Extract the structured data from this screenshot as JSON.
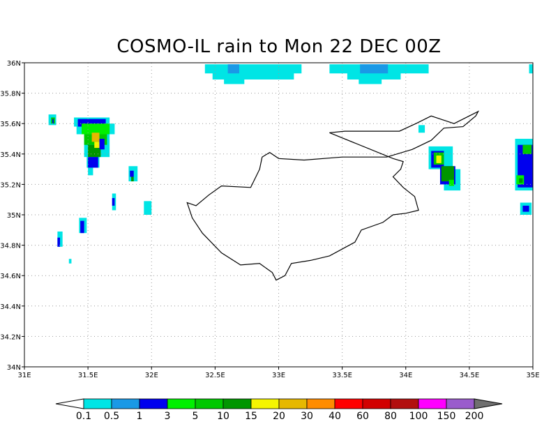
{
  "title": "COSMO-IL rain to Mon 22 DEC 00Z",
  "map": {
    "lon_range": [
      31,
      35
    ],
    "lat_range": [
      34,
      36
    ],
    "lon_ticks": [
      "31E",
      "31.5E",
      "32E",
      "32.5E",
      "33E",
      "33.5E",
      "34E",
      "34.5E",
      "35E"
    ],
    "lat_ticks": [
      "34N",
      "34.2N",
      "34.4N",
      "34.6N",
      "34.8N",
      "35N",
      "35.2N",
      "35.4N",
      "35.6N",
      "35.8N",
      "36N"
    ],
    "grid": "dotted"
  },
  "colorbar": {
    "labels": [
      "0.1",
      "0.5",
      "1",
      "3",
      "5",
      "10",
      "15",
      "20",
      "30",
      "40",
      "60",
      "80",
      "100",
      "150",
      "200"
    ],
    "colors": [
      "#00e5e5",
      "#1a99e6",
      "#0000ee",
      "#00f000",
      "#00c800",
      "#009600",
      "#f5f500",
      "#e6b800",
      "#ff8c00",
      "#ff0000",
      "#d20000",
      "#b20f0f",
      "#ff00ff",
      "#9a5ccc"
    ],
    "under_color": "#ffffff",
    "over_color": "#707070"
  },
  "coastline_cyprus": [
    [
      33.4,
      35.54
    ],
    [
      33.52,
      35.55
    ],
    [
      33.95,
      35.55
    ],
    [
      34.08,
      35.6
    ],
    [
      34.2,
      35.65
    ],
    [
      34.38,
      35.6
    ],
    [
      34.57,
      35.68
    ],
    [
      34.55,
      35.65
    ],
    [
      34.45,
      35.58
    ],
    [
      34.3,
      35.57
    ],
    [
      34.2,
      35.49
    ],
    [
      34.05,
      35.43
    ],
    [
      33.85,
      35.38
    ],
    [
      33.5,
      35.38
    ],
    [
      33.2,
      35.36
    ],
    [
      33.0,
      35.37
    ],
    [
      32.93,
      35.41
    ],
    [
      32.87,
      35.38
    ],
    [
      32.85,
      35.3
    ],
    [
      32.78,
      35.18
    ],
    [
      32.55,
      35.19
    ],
    [
      32.45,
      35.13
    ],
    [
      32.35,
      35.06
    ],
    [
      32.28,
      35.08
    ],
    [
      32.32,
      34.98
    ],
    [
      32.4,
      34.88
    ],
    [
      32.55,
      34.75
    ],
    [
      32.7,
      34.67
    ],
    [
      32.85,
      34.68
    ],
    [
      32.95,
      34.62
    ],
    [
      32.98,
      34.57
    ],
    [
      33.05,
      34.6
    ],
    [
      33.1,
      34.68
    ],
    [
      33.25,
      34.7
    ],
    [
      33.4,
      34.73
    ],
    [
      33.6,
      34.82
    ],
    [
      33.65,
      34.9
    ],
    [
      33.82,
      34.95
    ],
    [
      33.9,
      35.0
    ],
    [
      34.0,
      35.01
    ],
    [
      34.1,
      35.03
    ],
    [
      34.07,
      35.12
    ],
    [
      33.98,
      35.18
    ],
    [
      33.9,
      35.25
    ],
    [
      33.96,
      35.3
    ],
    [
      33.98,
      35.35
    ],
    [
      33.9,
      35.37
    ]
  ],
  "rain_cells": [
    {
      "lon": 32.42,
      "lat": 35.93,
      "w": 0.76,
      "h": 0.06,
      "c": "#00e5e5"
    },
    {
      "lon": 32.48,
      "lat": 35.89,
      "w": 0.64,
      "h": 0.05,
      "c": "#00e5e5"
    },
    {
      "lon": 32.57,
      "lat": 35.86,
      "w": 0.16,
      "h": 0.04,
      "c": "#00e5e5"
    },
    {
      "lon": 32.6,
      "lat": 35.93,
      "w": 0.09,
      "h": 0.06,
      "c": "#1a99e6"
    },
    {
      "lon": 33.4,
      "lat": 35.93,
      "w": 0.78,
      "h": 0.06,
      "c": "#00e5e5"
    },
    {
      "lon": 33.54,
      "lat": 35.89,
      "w": 0.42,
      "h": 0.05,
      "c": "#00e5e5"
    },
    {
      "lon": 33.63,
      "lat": 35.86,
      "w": 0.18,
      "h": 0.04,
      "c": "#00e5e5"
    },
    {
      "lon": 33.64,
      "lat": 35.93,
      "w": 0.22,
      "h": 0.06,
      "c": "#1a99e6"
    },
    {
      "lon": 34.97,
      "lat": 35.93,
      "w": 0.03,
      "h": 0.06,
      "c": "#00e5e5"
    },
    {
      "lon": 31.19,
      "lat": 35.59,
      "w": 0.06,
      "h": 0.07,
      "c": "#00e5e5"
    },
    {
      "lon": 31.21,
      "lat": 35.6,
      "w": 0.03,
      "h": 0.04,
      "c": "#00c800"
    },
    {
      "lon": 31.22,
      "lat": 35.6,
      "w": 0.01,
      "h": 0.03,
      "c": "#0000ee"
    },
    {
      "lon": 31.39,
      "lat": 35.58,
      "w": 0.28,
      "h": 0.06,
      "c": "#00e5e5"
    },
    {
      "lon": 31.41,
      "lat": 35.53,
      "w": 0.3,
      "h": 0.07,
      "c": "#00e5e5"
    },
    {
      "lon": 31.47,
      "lat": 35.38,
      "w": 0.2,
      "h": 0.15,
      "c": "#00e5e5"
    },
    {
      "lon": 31.49,
      "lat": 35.31,
      "w": 0.1,
      "h": 0.08,
      "c": "#00e5e5"
    },
    {
      "lon": 31.5,
      "lat": 35.26,
      "w": 0.04,
      "h": 0.05,
      "c": "#00e5e5"
    },
    {
      "lon": 31.42,
      "lat": 35.58,
      "w": 0.22,
      "h": 0.05,
      "c": "#0000ee"
    },
    {
      "lon": 31.45,
      "lat": 35.53,
      "w": 0.22,
      "h": 0.07,
      "c": "#00f000"
    },
    {
      "lon": 31.47,
      "lat": 35.46,
      "w": 0.18,
      "h": 0.07,
      "c": "#00c800"
    },
    {
      "lon": 31.5,
      "lat": 35.38,
      "w": 0.1,
      "h": 0.08,
      "c": "#009600"
    },
    {
      "lon": 31.5,
      "lat": 35.31,
      "w": 0.08,
      "h": 0.07,
      "c": "#0000ee"
    },
    {
      "lon": 31.53,
      "lat": 35.48,
      "w": 0.06,
      "h": 0.06,
      "c": "#e6b800"
    },
    {
      "lon": 31.55,
      "lat": 35.44,
      "w": 0.04,
      "h": 0.04,
      "c": "#f5f500"
    },
    {
      "lon": 31.59,
      "lat": 35.43,
      "w": 0.04,
      "h": 0.07,
      "c": "#0000ee"
    },
    {
      "lon": 31.82,
      "lat": 35.22,
      "w": 0.07,
      "h": 0.1,
      "c": "#00e5e5"
    },
    {
      "lon": 31.83,
      "lat": 35.25,
      "w": 0.03,
      "h": 0.04,
      "c": "#0000ee"
    },
    {
      "lon": 31.84,
      "lat": 35.22,
      "w": 0.02,
      "h": 0.03,
      "c": "#009600"
    },
    {
      "lon": 31.69,
      "lat": 35.03,
      "w": 0.03,
      "h": 0.11,
      "c": "#00e5e5"
    },
    {
      "lon": 31.69,
      "lat": 35.06,
      "w": 0.02,
      "h": 0.05,
      "c": "#0000ee"
    },
    {
      "lon": 31.94,
      "lat": 35.0,
      "w": 0.06,
      "h": 0.09,
      "c": "#00e5e5"
    },
    {
      "lon": 31.43,
      "lat": 34.88,
      "w": 0.06,
      "h": 0.1,
      "c": "#00e5e5"
    },
    {
      "lon": 31.44,
      "lat": 34.88,
      "w": 0.03,
      "h": 0.08,
      "c": "#0000ee"
    },
    {
      "lon": 31.26,
      "lat": 34.79,
      "w": 0.04,
      "h": 0.1,
      "c": "#00e5e5"
    },
    {
      "lon": 31.26,
      "lat": 34.79,
      "w": 0.02,
      "h": 0.06,
      "c": "#0000ee"
    },
    {
      "lon": 31.35,
      "lat": 34.68,
      "w": 0.02,
      "h": 0.03,
      "c": "#00e5e5"
    },
    {
      "lon": 34.1,
      "lat": 35.54,
      "w": 0.05,
      "h": 0.05,
      "c": "#00e5e5"
    },
    {
      "lon": 34.18,
      "lat": 35.3,
      "w": 0.19,
      "h": 0.15,
      "c": "#00e5e5"
    },
    {
      "lon": 34.3,
      "lat": 35.16,
      "w": 0.13,
      "h": 0.14,
      "c": "#00e5e5"
    },
    {
      "lon": 34.2,
      "lat": 35.31,
      "w": 0.1,
      "h": 0.11,
      "c": "#0000ee"
    },
    {
      "lon": 34.27,
      "lat": 35.2,
      "w": 0.12,
      "h": 0.12,
      "c": "#0000ee"
    },
    {
      "lon": 34.22,
      "lat": 35.33,
      "w": 0.08,
      "h": 0.08,
      "c": "#00c800"
    },
    {
      "lon": 34.28,
      "lat": 35.22,
      "w": 0.1,
      "h": 0.1,
      "c": "#009600"
    },
    {
      "lon": 34.24,
      "lat": 35.34,
      "w": 0.04,
      "h": 0.05,
      "c": "#f5f500"
    },
    {
      "lon": 34.34,
      "lat": 35.19,
      "w": 0.04,
      "h": 0.04,
      "c": "#00f000"
    },
    {
      "lon": 34.86,
      "lat": 35.16,
      "w": 0.14,
      "h": 0.34,
      "c": "#00e5e5"
    },
    {
      "lon": 34.88,
      "lat": 35.18,
      "w": 0.12,
      "h": 0.28,
      "c": "#0000ee"
    },
    {
      "lon": 34.92,
      "lat": 35.4,
      "w": 0.07,
      "h": 0.06,
      "c": "#00c800"
    },
    {
      "lon": 34.87,
      "lat": 35.2,
      "w": 0.06,
      "h": 0.06,
      "c": "#00f000"
    },
    {
      "lon": 34.89,
      "lat": 35.21,
      "w": 0.03,
      "h": 0.03,
      "c": "#009600"
    },
    {
      "lon": 34.9,
      "lat": 35.0,
      "w": 0.09,
      "h": 0.08,
      "c": "#00e5e5"
    },
    {
      "lon": 34.92,
      "lat": 35.02,
      "w": 0.05,
      "h": 0.04,
      "c": "#0000ee"
    }
  ]
}
